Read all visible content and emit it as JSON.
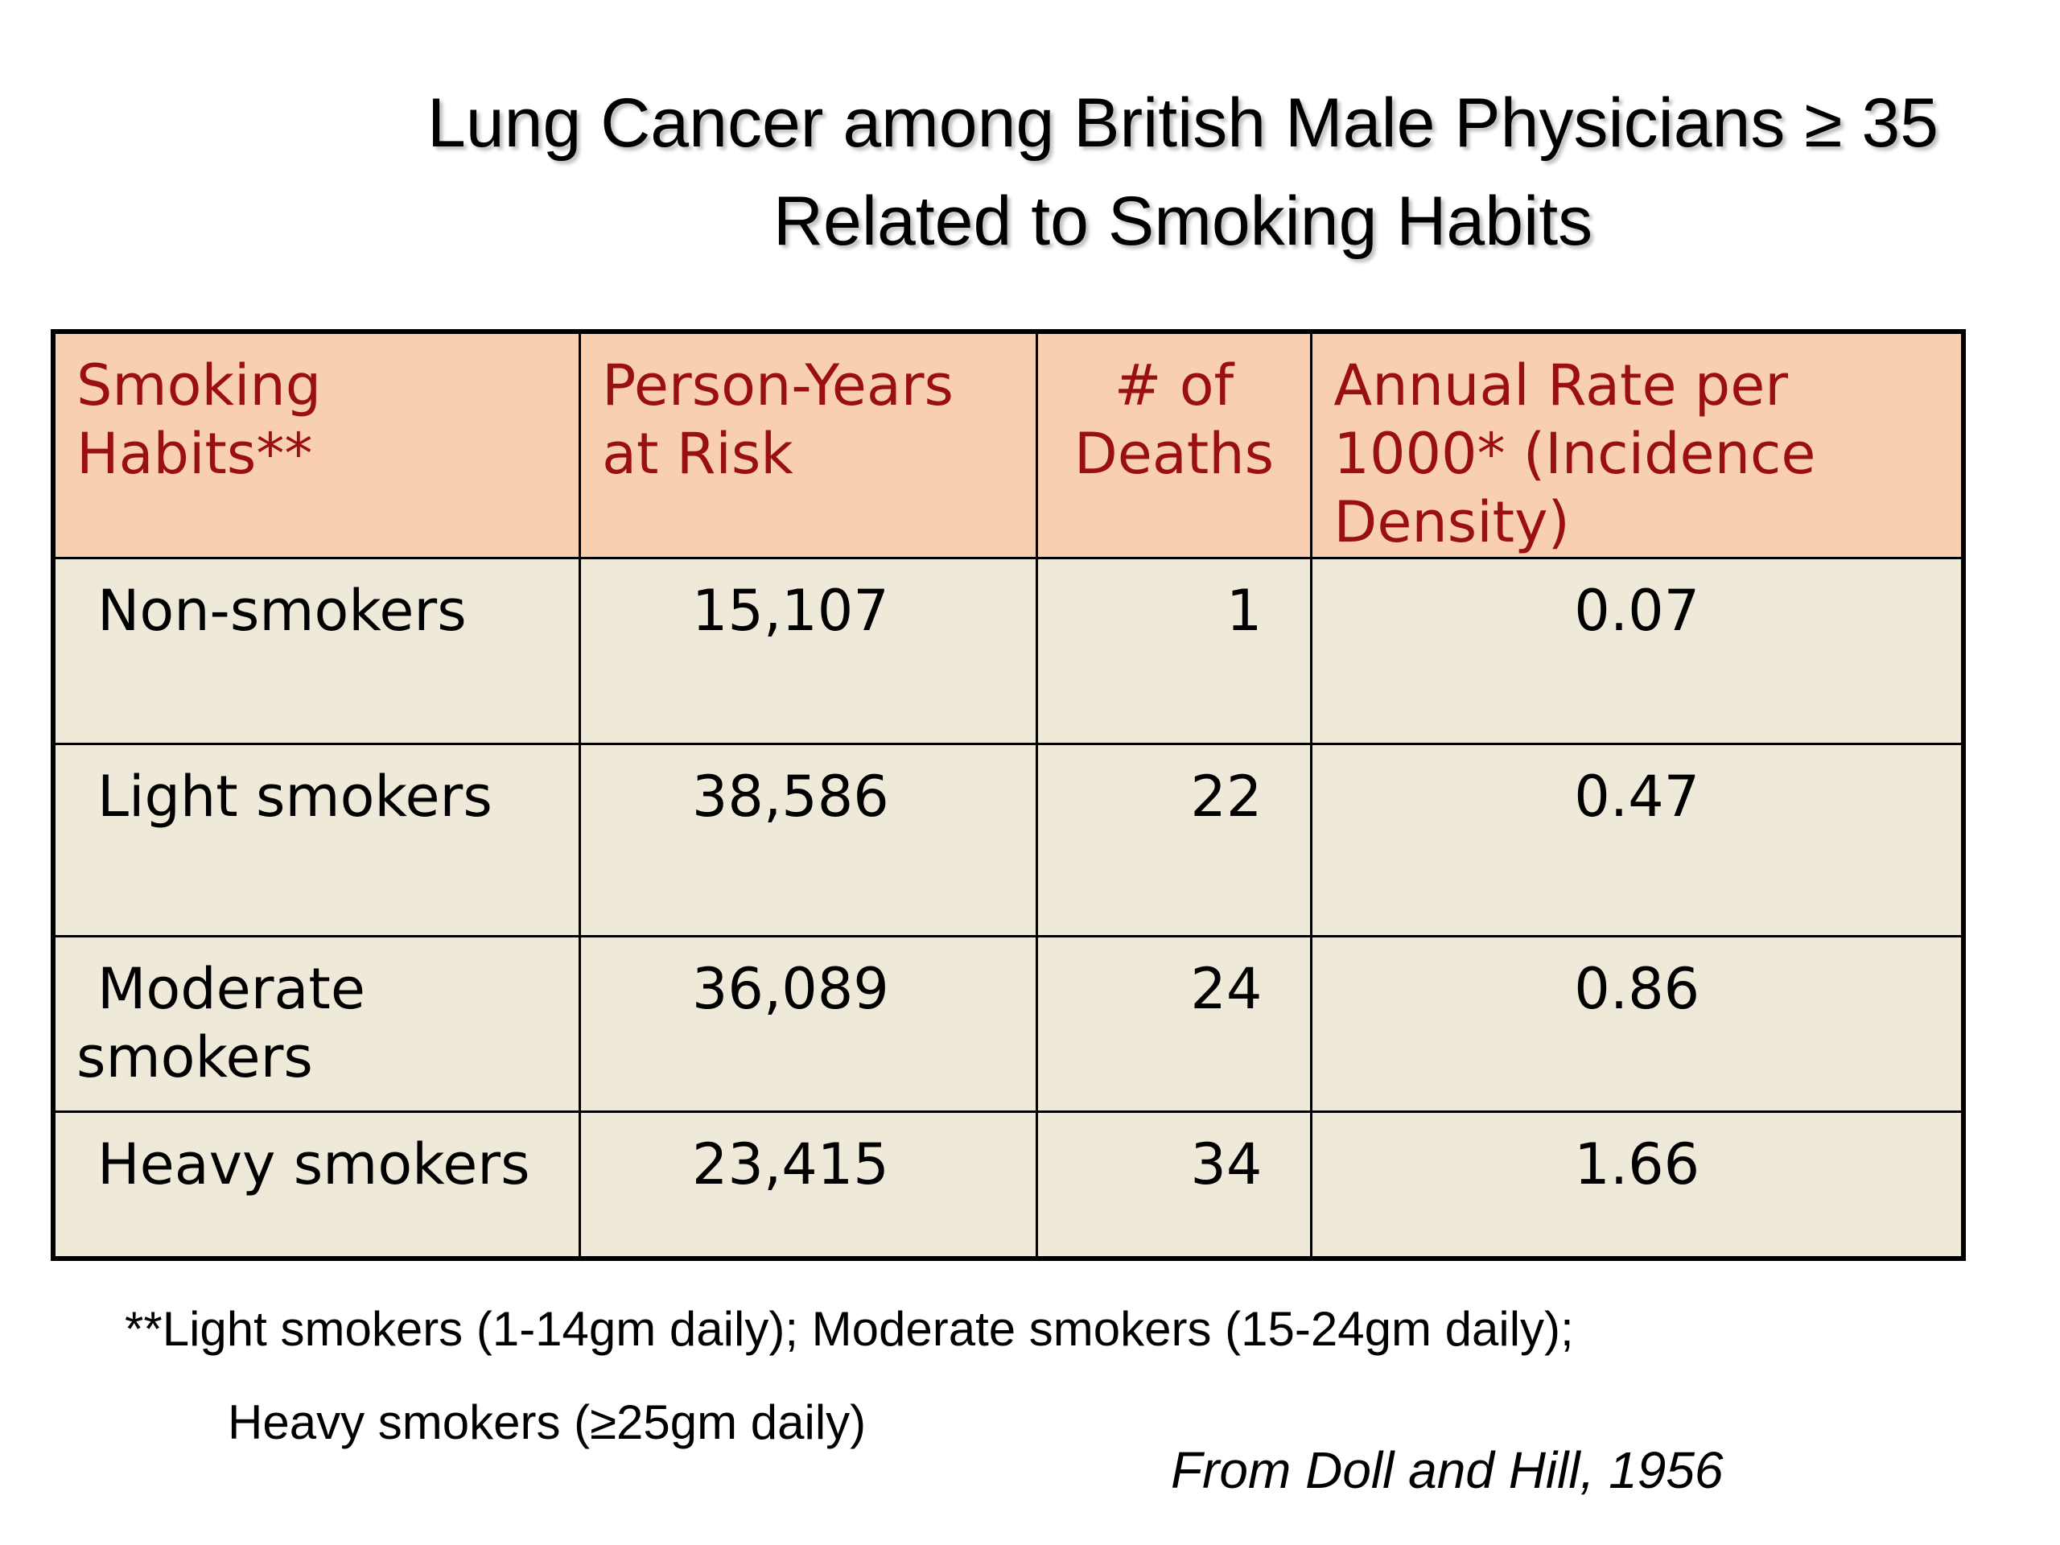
{
  "title": {
    "line1": "Lung Cancer among British Male Physicians ≥ 35",
    "line2": "Related to Smoking Habits"
  },
  "table": {
    "headers": [
      {
        "line1": "Smoking",
        "line2": "Habits**",
        "line3": ""
      },
      {
        "line1": "Person-Years",
        "line2": "at Risk",
        "line3": ""
      },
      {
        "line1": "# of",
        "line2": "Deaths",
        "line3": ""
      },
      {
        "line1": "Annual Rate per",
        "line2": "1000* (Incidence",
        "line3": "Density)"
      }
    ],
    "rows": [
      {
        "habit_line1": "Non-smokers",
        "habit_line2": "",
        "person_years": "15,107",
        "deaths": "1",
        "rate": "0.07"
      },
      {
        "habit_line1": "Light smokers",
        "habit_line2": "",
        "person_years": "38,586",
        "deaths": "22",
        "rate": "0.47"
      },
      {
        "habit_line1": "Moderate",
        "habit_line2": "smokers",
        "person_years": "36,089",
        "deaths": "24",
        "rate": "0.86"
      },
      {
        "habit_line1": "Heavy smokers",
        "habit_line2": "",
        "person_years": "23,415",
        "deaths": "34",
        "rate": "1.66"
      }
    ]
  },
  "footnote": {
    "line1": "**Light smokers (1-14gm daily); Moderate smokers (15-24gm daily);",
    "line2": "Heavy smokers (≥25gm daily)"
  },
  "source": "From Doll and Hill, 1956",
  "colors": {
    "header_background": "#f9cfb1",
    "header_text": "#9a1010",
    "body_background": "#eee9d8"
  }
}
